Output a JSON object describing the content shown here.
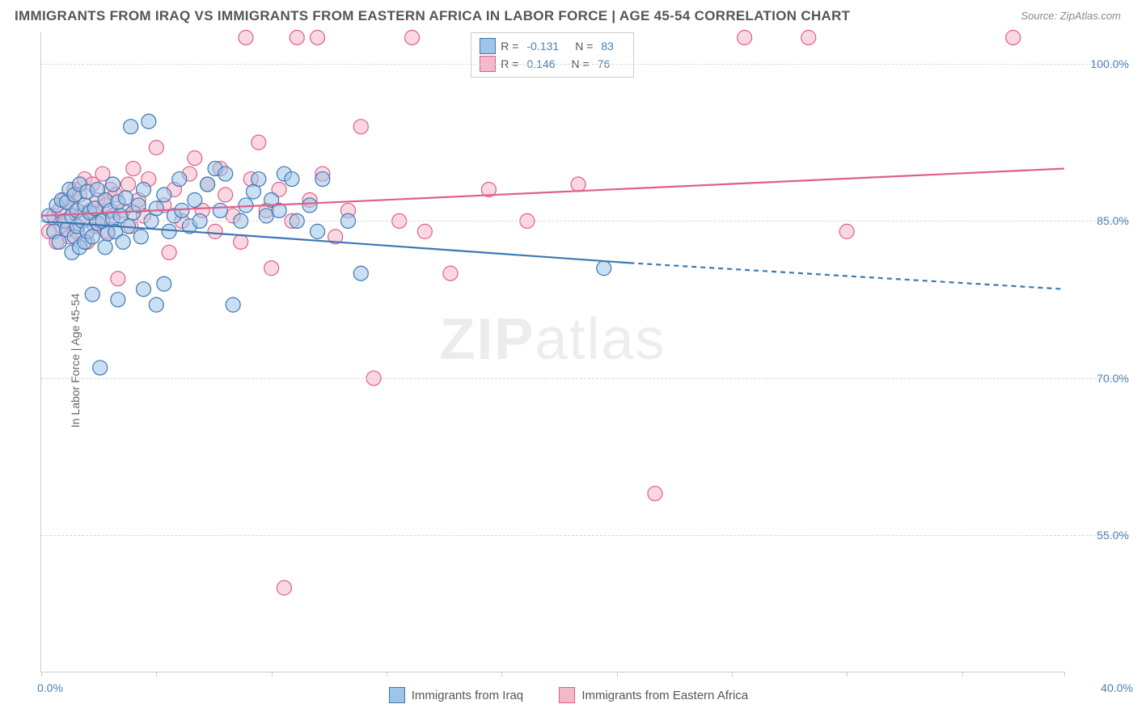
{
  "title": "IMMIGRANTS FROM IRAQ VS IMMIGRANTS FROM EASTERN AFRICA IN LABOR FORCE | AGE 45-54 CORRELATION CHART",
  "source": "Source: ZipAtlas.com",
  "ylabel": "In Labor Force | Age 45-54",
  "watermark_a": "ZIP",
  "watermark_b": "atlas",
  "chart": {
    "type": "scatter-with-trend",
    "background_color": "#ffffff",
    "grid_color": "#d8d8d8",
    "axis_color": "#cccccc",
    "text_color": "#666666",
    "value_color": "#4a7fb5",
    "xlim": [
      0.0,
      40.0
    ],
    "ylim": [
      42.0,
      103.0
    ],
    "y_ticks": [
      55.0,
      70.0,
      85.0,
      100.0
    ],
    "y_tick_labels": [
      "55.0%",
      "70.0%",
      "85.0%",
      "100.0%"
    ],
    "x_ticks": [
      0,
      4.5,
      9,
      13.5,
      18,
      22.5,
      27,
      31.5,
      36,
      40
    ],
    "x_min_label": "0.0%",
    "x_max_label": "40.0%",
    "marker_radius": 9,
    "marker_stroke_width": 1.2,
    "trend_line_width": 2.2,
    "series": [
      {
        "name": "Immigrants from Iraq",
        "fill": "#9ec5e8",
        "stroke": "#3b78b5",
        "fill_opacity": 0.55,
        "r_value": "-0.131",
        "n_value": "83",
        "trend": {
          "x1": 0.0,
          "y1": 85.0,
          "x2": 23.0,
          "y2": 81.0,
          "x2_ext": 40.0,
          "y2_ext": 78.5
        },
        "points": [
          [
            0.3,
            85.5
          ],
          [
            0.5,
            84.0
          ],
          [
            0.6,
            86.5
          ],
          [
            0.7,
            83.0
          ],
          [
            0.8,
            87.0
          ],
          [
            0.9,
            85.0
          ],
          [
            1.0,
            84.2
          ],
          [
            1.0,
            86.8
          ],
          [
            1.1,
            88.0
          ],
          [
            1.2,
            82.0
          ],
          [
            1.2,
            85.5
          ],
          [
            1.3,
            83.5
          ],
          [
            1.3,
            87.5
          ],
          [
            1.4,
            86.0
          ],
          [
            1.4,
            84.5
          ],
          [
            1.5,
            88.5
          ],
          [
            1.5,
            82.5
          ],
          [
            1.6,
            85.0
          ],
          [
            1.7,
            83.0
          ],
          [
            1.7,
            86.5
          ],
          [
            1.8,
            84.0
          ],
          [
            1.8,
            87.8
          ],
          [
            1.9,
            85.8
          ],
          [
            2.0,
            83.5
          ],
          [
            2.0,
            78.0
          ],
          [
            2.1,
            86.2
          ],
          [
            2.2,
            88.0
          ],
          [
            2.2,
            84.8
          ],
          [
            2.3,
            71.0
          ],
          [
            2.4,
            85.0
          ],
          [
            2.5,
            82.5
          ],
          [
            2.5,
            87.0
          ],
          [
            2.6,
            83.8
          ],
          [
            2.7,
            86.0
          ],
          [
            2.8,
            85.2
          ],
          [
            2.8,
            88.5
          ],
          [
            2.9,
            84.0
          ],
          [
            3.0,
            86.8
          ],
          [
            3.0,
            77.5
          ],
          [
            3.1,
            85.5
          ],
          [
            3.2,
            83.0
          ],
          [
            3.3,
            87.2
          ],
          [
            3.4,
            84.5
          ],
          [
            3.5,
            94.0
          ],
          [
            3.6,
            85.8
          ],
          [
            3.8,
            86.5
          ],
          [
            3.9,
            83.5
          ],
          [
            4.0,
            78.5
          ],
          [
            4.0,
            88.0
          ],
          [
            4.2,
            94.5
          ],
          [
            4.3,
            85.0
          ],
          [
            4.5,
            77.0
          ],
          [
            4.5,
            86.2
          ],
          [
            4.8,
            79.0
          ],
          [
            4.8,
            87.5
          ],
          [
            5.0,
            84.0
          ],
          [
            5.2,
            85.5
          ],
          [
            5.4,
            89.0
          ],
          [
            5.5,
            86.0
          ],
          [
            5.8,
            84.5
          ],
          [
            6.0,
            87.0
          ],
          [
            6.2,
            85.0
          ],
          [
            6.5,
            88.5
          ],
          [
            6.8,
            90.0
          ],
          [
            7.0,
            86.0
          ],
          [
            7.2,
            89.5
          ],
          [
            7.5,
            77.0
          ],
          [
            7.8,
            85.0
          ],
          [
            8.0,
            86.5
          ],
          [
            8.3,
            87.8
          ],
          [
            8.5,
            89.0
          ],
          [
            8.8,
            85.5
          ],
          [
            9.0,
            87.0
          ],
          [
            9.3,
            86.0
          ],
          [
            9.5,
            89.5
          ],
          [
            9.8,
            89.0
          ],
          [
            10.0,
            85.0
          ],
          [
            10.5,
            86.5
          ],
          [
            10.8,
            84.0
          ],
          [
            11.0,
            89.0
          ],
          [
            12.0,
            85.0
          ],
          [
            12.5,
            80.0
          ],
          [
            22.0,
            80.5
          ]
        ]
      },
      {
        "name": "Immigrants from Eastern Africa",
        "fill": "#f5b8c9",
        "stroke": "#de5f8a",
        "fill_opacity": 0.55,
        "r_value": "0.146",
        "n_value": "76",
        "trend": {
          "x1": 0.0,
          "y1": 85.5,
          "x2": 40.0,
          "y2": 90.0,
          "x2_ext": 40.0,
          "y2_ext": 90.0
        },
        "points": [
          [
            0.3,
            84.0
          ],
          [
            0.5,
            85.5
          ],
          [
            0.6,
            83.0
          ],
          [
            0.7,
            86.0
          ],
          [
            0.8,
            84.5
          ],
          [
            0.9,
            87.0
          ],
          [
            1.0,
            85.0
          ],
          [
            1.1,
            83.5
          ],
          [
            1.2,
            86.5
          ],
          [
            1.3,
            88.0
          ],
          [
            1.4,
            84.0
          ],
          [
            1.5,
            87.5
          ],
          [
            1.6,
            85.5
          ],
          [
            1.7,
            89.0
          ],
          [
            1.8,
            83.0
          ],
          [
            1.9,
            86.0
          ],
          [
            2.0,
            88.5
          ],
          [
            2.1,
            84.5
          ],
          [
            2.2,
            87.0
          ],
          [
            2.3,
            85.0
          ],
          [
            2.4,
            89.5
          ],
          [
            2.5,
            86.5
          ],
          [
            2.6,
            84.0
          ],
          [
            2.7,
            88.0
          ],
          [
            2.8,
            85.5
          ],
          [
            2.9,
            87.5
          ],
          [
            3.0,
            79.5
          ],
          [
            3.2,
            86.0
          ],
          [
            3.4,
            88.5
          ],
          [
            3.5,
            84.5
          ],
          [
            3.6,
            90.0
          ],
          [
            3.8,
            87.0
          ],
          [
            4.0,
            85.5
          ],
          [
            4.2,
            89.0
          ],
          [
            4.5,
            92.0
          ],
          [
            4.8,
            86.5
          ],
          [
            5.0,
            82.0
          ],
          [
            5.2,
            88.0
          ],
          [
            5.5,
            85.0
          ],
          [
            5.8,
            89.5
          ],
          [
            6.0,
            91.0
          ],
          [
            6.3,
            86.0
          ],
          [
            6.5,
            88.5
          ],
          [
            6.8,
            84.0
          ],
          [
            7.0,
            90.0
          ],
          [
            7.2,
            87.5
          ],
          [
            7.5,
            85.5
          ],
          [
            7.8,
            83.0
          ],
          [
            8.0,
            102.5
          ],
          [
            8.2,
            89.0
          ],
          [
            8.5,
            92.5
          ],
          [
            8.8,
            86.0
          ],
          [
            9.0,
            80.5
          ],
          [
            9.3,
            88.0
          ],
          [
            9.5,
            50.0
          ],
          [
            9.8,
            85.0
          ],
          [
            10.0,
            102.5
          ],
          [
            10.5,
            87.0
          ],
          [
            10.8,
            102.5
          ],
          [
            11.0,
            89.5
          ],
          [
            11.5,
            83.5
          ],
          [
            12.0,
            86.0
          ],
          [
            12.5,
            94.0
          ],
          [
            13.0,
            70.0
          ],
          [
            14.0,
            85.0
          ],
          [
            14.5,
            102.5
          ],
          [
            15.0,
            84.0
          ],
          [
            16.0,
            80.0
          ],
          [
            17.5,
            88.0
          ],
          [
            19.0,
            85.0
          ],
          [
            21.0,
            88.5
          ],
          [
            24.0,
            59.0
          ],
          [
            27.5,
            102.5
          ],
          [
            30.0,
            102.5
          ],
          [
            31.5,
            84.0
          ],
          [
            38.0,
            102.5
          ]
        ]
      }
    ]
  },
  "legend_stats": {
    "r_label": "R =",
    "n_label": "N ="
  }
}
